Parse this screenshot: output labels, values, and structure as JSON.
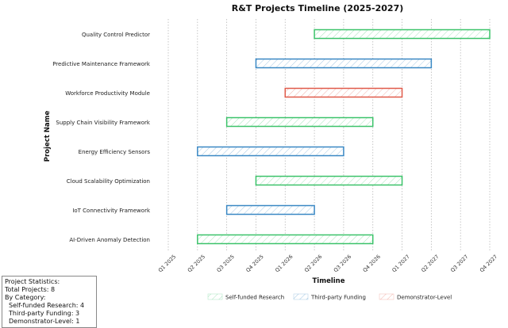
{
  "chart_data": {
    "type": "gantt",
    "title": "R&T Projects Timeline (2025-2027)",
    "xlabel": "Timeline",
    "ylabel": "Project Name",
    "x_ticks": [
      "Q1 2025",
      "Q2 2025",
      "Q3 2025",
      "Q4 2025",
      "Q1 2026",
      "Q2 2026",
      "Q3 2026",
      "Q4 2026",
      "Q1 2027",
      "Q2 2027",
      "Q3 2027",
      "Q4 2027"
    ],
    "xlim": [
      "Q1 2025",
      "Q4 2027"
    ],
    "grid": "vertical dotted",
    "legend_position": "bottom-center",
    "categories": [
      {
        "name": "Self-funded Research",
        "color": "#3cc36a"
      },
      {
        "name": "Third-party Funding",
        "color": "#3a88c4"
      },
      {
        "name": "Demonstrator-Level",
        "color": "#e05a4a"
      }
    ],
    "projects": [
      {
        "name": "Quality Control Predictor",
        "category": "Self-funded Research",
        "start": "Q2 2026",
        "end": "Q4 2027"
      },
      {
        "name": "Predictive Maintenance Framework",
        "category": "Third-party Funding",
        "start": "Q4 2025",
        "end": "Q2 2027"
      },
      {
        "name": "Workforce Productivity Module",
        "category": "Demonstrator-Level",
        "start": "Q1 2026",
        "end": "Q1 2027"
      },
      {
        "name": "Supply Chain Visibility Framework",
        "category": "Self-funded Research",
        "start": "Q3 2025",
        "end": "Q4 2026"
      },
      {
        "name": "Energy Efficiency Sensors",
        "category": "Third-party Funding",
        "start": "Q2 2025",
        "end": "Q3 2026"
      },
      {
        "name": "Cloud Scalability Optimization",
        "category": "Self-funded Research",
        "start": "Q4 2025",
        "end": "Q1 2027"
      },
      {
        "name": "IoT Connectivity Framework",
        "category": "Third-party Funding",
        "start": "Q3 2025",
        "end": "Q2 2026"
      },
      {
        "name": "AI-Driven Anomaly Detection",
        "category": "Self-funded Research",
        "start": "Q2 2025",
        "end": "Q4 2026"
      }
    ]
  },
  "stats": {
    "heading": "Project Statistics:",
    "total": "Total Projects: 8",
    "by_category": "By Category:",
    "self_funded": "Self-funded Research: 4",
    "third_party": "Third-party Funding: 3",
    "demonstrator": "Demonstrator-Level: 1"
  }
}
